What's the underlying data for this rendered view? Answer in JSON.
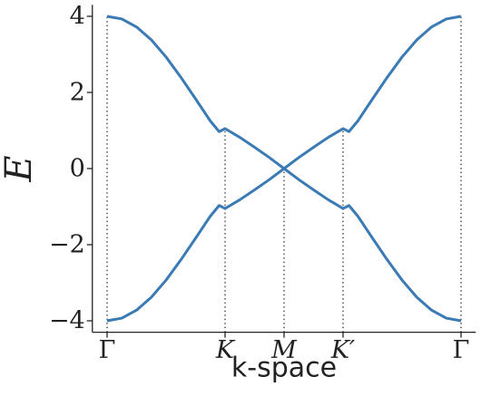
{
  "chart_data": {
    "type": "line",
    "xlabel": "k-space",
    "ylabel": "E",
    "x": [
      0,
      0.25,
      0.5,
      0.75,
      1,
      1.25,
      1.5,
      1.75,
      1.9,
      2,
      2.25,
      2.5,
      2.75,
      3,
      3.25,
      3.5,
      3.75,
      4,
      4.1,
      4.25,
      4.5,
      4.75,
      5,
      5.25,
      5.5,
      5.75,
      6
    ],
    "series": [
      {
        "color": "#3a7ab5",
        "values": [
          4.0,
          3.93,
          3.72,
          3.38,
          2.93,
          2.4,
          1.83,
          1.25,
          0.97,
          1.05,
          0.82,
          0.56,
          0.29,
          0,
          0.29,
          0.56,
          0.82,
          1.05,
          0.97,
          1.25,
          1.83,
          2.4,
          2.93,
          3.38,
          3.72,
          3.93,
          4.0
        ]
      },
      {
        "color": "#3a7ab5",
        "values": [
          -4.0,
          -3.93,
          -3.72,
          -3.38,
          -2.93,
          -2.4,
          -1.83,
          -1.25,
          -0.97,
          -1.05,
          -0.82,
          -0.56,
          -0.29,
          0,
          -0.29,
          -0.56,
          -0.82,
          -1.05,
          -0.97,
          -1.25,
          -1.83,
          -2.4,
          -2.93,
          -3.38,
          -3.72,
          -3.93,
          -4.0
        ]
      }
    ],
    "xlim": [
      -0.25,
      6.25
    ],
    "ylim": [
      -4.3,
      4.3
    ],
    "xticks": [
      {
        "value": 0,
        "label": "Γ"
      },
      {
        "value": 2,
        "label": "K"
      },
      {
        "value": 3,
        "label": "M"
      },
      {
        "value": 4,
        "label": "K′"
      },
      {
        "value": 6,
        "label": "Γ"
      }
    ],
    "yticks": [
      {
        "value": -4,
        "label": "−4"
      },
      {
        "value": -2,
        "label": "−2"
      },
      0,
      2,
      4
    ]
  }
}
